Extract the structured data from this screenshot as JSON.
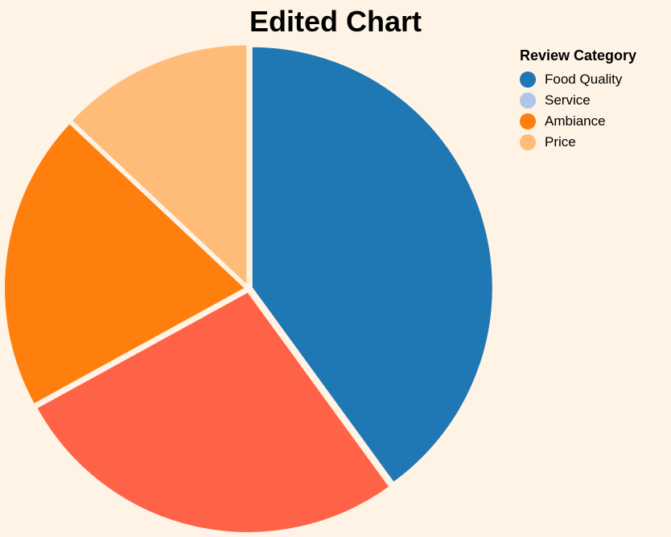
{
  "chart_data": {
    "type": "pie",
    "title": "Edited Chart",
    "legend_title": "Review Category",
    "legend_position": "top-right",
    "categories": [
      "Food Quality",
      "Service",
      "Ambiance",
      "Price"
    ],
    "values": [
      40,
      27,
      20,
      13
    ],
    "slice_colors": [
      "#1f77b4",
      "#ff6347",
      "#ff7f0e",
      "#ffbb78"
    ],
    "legend_colors": [
      "#1f77b4",
      "#aec7e8",
      "#ff7f0e",
      "#ffbb78"
    ],
    "background": "#fef3e4"
  }
}
